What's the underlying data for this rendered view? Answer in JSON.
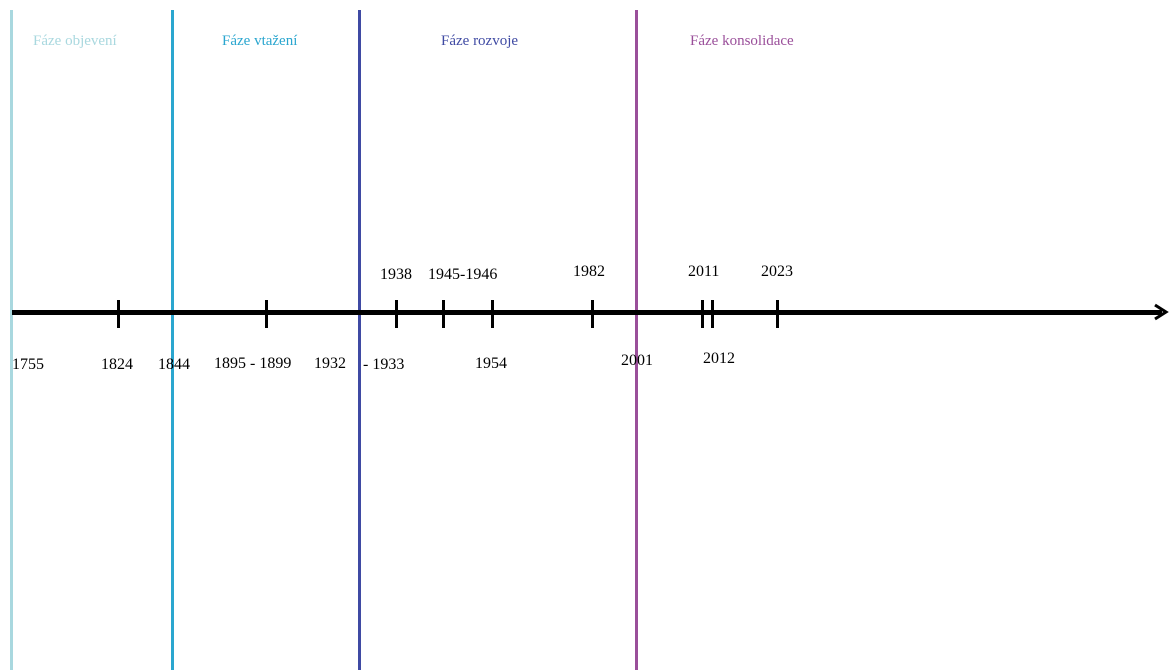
{
  "phases": [
    {
      "label": "Fáze objevení",
      "color": "#a9d8df"
    },
    {
      "label": "Fáze vtažení",
      "color": "#2aa6cf"
    },
    {
      "label": "Fáze rozvoje",
      "color": "#3f4aa3"
    },
    {
      "label": "Fáze konsolidace",
      "color": "#9a4f9a"
    }
  ],
  "timeline": {
    "axis_color": "#000000",
    "labels_below": [
      "1755",
      "1824",
      "1844",
      "1895 - 1899",
      "1932",
      "- 1933",
      "1954",
      "2001",
      "2012"
    ],
    "labels_above": [
      "1938",
      "1945-1946",
      "1982",
      "2011",
      "2023"
    ]
  }
}
